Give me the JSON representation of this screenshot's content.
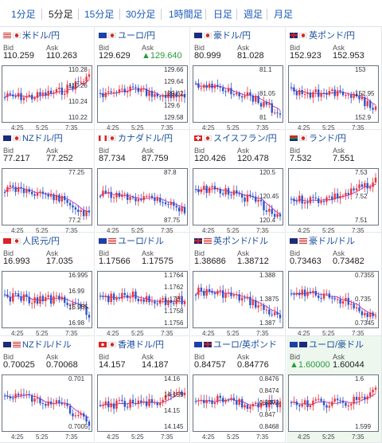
{
  "tabs": [
    "1分足",
    "5分足",
    "15分足",
    "30分足",
    "1時間足",
    "日足",
    "週足",
    "月足"
  ],
  "active_tab": "5分足",
  "labels": {
    "bid": "Bid",
    "ask": "Ask"
  },
  "x_ticks": [
    "4:25",
    "5:25",
    "7:35"
  ],
  "pairs": [
    {
      "name": "米ドル/円",
      "flags": [
        "us",
        "jp"
      ],
      "bid": "110.259",
      "ask": "110.263",
      "y_ticks": [
        "110.28",
        "110.26",
        "110.24",
        "110.22"
      ],
      "trend": "up"
    },
    {
      "name": "ユーロ/円",
      "flags": [
        "eu",
        "jp"
      ],
      "bid": "129.629",
      "ask": "129.640",
      "ask_up": true,
      "y_ticks": [
        "129.66",
        "129.64",
        "129.62",
        "129.6",
        "129.58"
      ],
      "trend": "flat"
    },
    {
      "name": "豪ドル/円",
      "flags": [
        "au",
        "jp"
      ],
      "bid": "80.999",
      "ask": "81.028",
      "y_ticks": [
        "81.1",
        "81.05",
        "81"
      ],
      "trend": "down"
    },
    {
      "name": "英ポンド/円",
      "flags": [
        "gb",
        "jp"
      ],
      "bid": "152.923",
      "ask": "152.953",
      "y_ticks": [
        "153",
        "152.95",
        "152.9"
      ],
      "trend": "flatdown"
    },
    {
      "name": "NZドル/円",
      "flags": [
        "nz",
        "jp"
      ],
      "bid": "77.217",
      "ask": "77.252",
      "y_ticks": [
        "77.25",
        "77.2"
      ],
      "trend": "down"
    },
    {
      "name": "カナダドル/円",
      "flags": [
        "ca",
        "jp"
      ],
      "bid": "87.734",
      "ask": "87.759",
      "y_ticks": [
        "87.8",
        "87.75"
      ],
      "trend": "flatdown"
    },
    {
      "name": "スイスフラン/円",
      "flags": [
        "ch",
        "jp"
      ],
      "bid": "120.426",
      "ask": "120.478",
      "y_ticks": [
        "120.5",
        "120.45",
        "120.4"
      ],
      "trend": "down"
    },
    {
      "name": "ランド/円",
      "flags": [
        "za",
        "jp"
      ],
      "bid": "7.532",
      "ask": "7.551",
      "y_ticks": [
        "7.53",
        "7.52",
        "7.51"
      ],
      "trend": "up"
    },
    {
      "name": "人民元/円",
      "flags": [
        "cn",
        "jp"
      ],
      "bid": "16.993",
      "ask": "17.035",
      "y_ticks": [
        "16.995",
        "16.99",
        "16.985",
        "16.98"
      ],
      "trend": "flatdown"
    },
    {
      "name": "ユーロ/ドル",
      "flags": [
        "eu",
        "us"
      ],
      "bid": "1.17566",
      "ask": "1.17575",
      "y_ticks": [
        "1.1764",
        "1.1762",
        "1.176",
        "1.1758",
        "1.1756"
      ],
      "trend": "flat"
    },
    {
      "name": "英ポンド/ドル",
      "flags": [
        "gb",
        "us"
      ],
      "bid": "1.38686",
      "ask": "1.38712",
      "y_ticks": [
        "1.388",
        "1.3875",
        "1.387"
      ],
      "trend": "down"
    },
    {
      "name": "豪ドル/ドル",
      "flags": [
        "au",
        "us"
      ],
      "bid": "0.73463",
      "ask": "0.73482",
      "y_ticks": [
        "0.7355",
        "0.735",
        "0.7345"
      ],
      "trend": "down"
    },
    {
      "name": "NZドル/ドル",
      "flags": [
        "nz",
        "us"
      ],
      "bid": "0.70025",
      "ask": "0.70068",
      "y_ticks": [
        "0.701",
        "0.7005"
      ],
      "trend": "down"
    },
    {
      "name": "香港ドル/円",
      "flags": [
        "hk",
        "jp"
      ],
      "bid": "14.157",
      "ask": "14.187",
      "y_ticks": [
        "14.16",
        "14.155",
        "14.15",
        "14.145"
      ],
      "trend": "flatup"
    },
    {
      "name": "ユーロ/英ポンド",
      "flags": [
        "eu",
        "gb"
      ],
      "bid": "0.84757",
      "ask": "0.84776",
      "y_ticks": [
        "0.8476",
        "0.8474",
        "0.8472",
        "0.847",
        "0.8468"
      ],
      "trend": "flat"
    },
    {
      "name": "ユーロ/豪ドル",
      "flags": [
        "eu",
        "au"
      ],
      "bid": "1.60000",
      "bid_up": true,
      "ask": "1.60044",
      "y_ticks": [
        "1.6",
        "1.599"
      ],
      "trend": "flatup",
      "highlight": true
    }
  ],
  "colors": {
    "link": "#1a4fa0",
    "candle_up": "#e8373c",
    "candle_down": "#2e55c9",
    "ma_line": "#c828c8",
    "up_text": "#2a9a3a",
    "highlight_bg": "#edf7ee"
  }
}
